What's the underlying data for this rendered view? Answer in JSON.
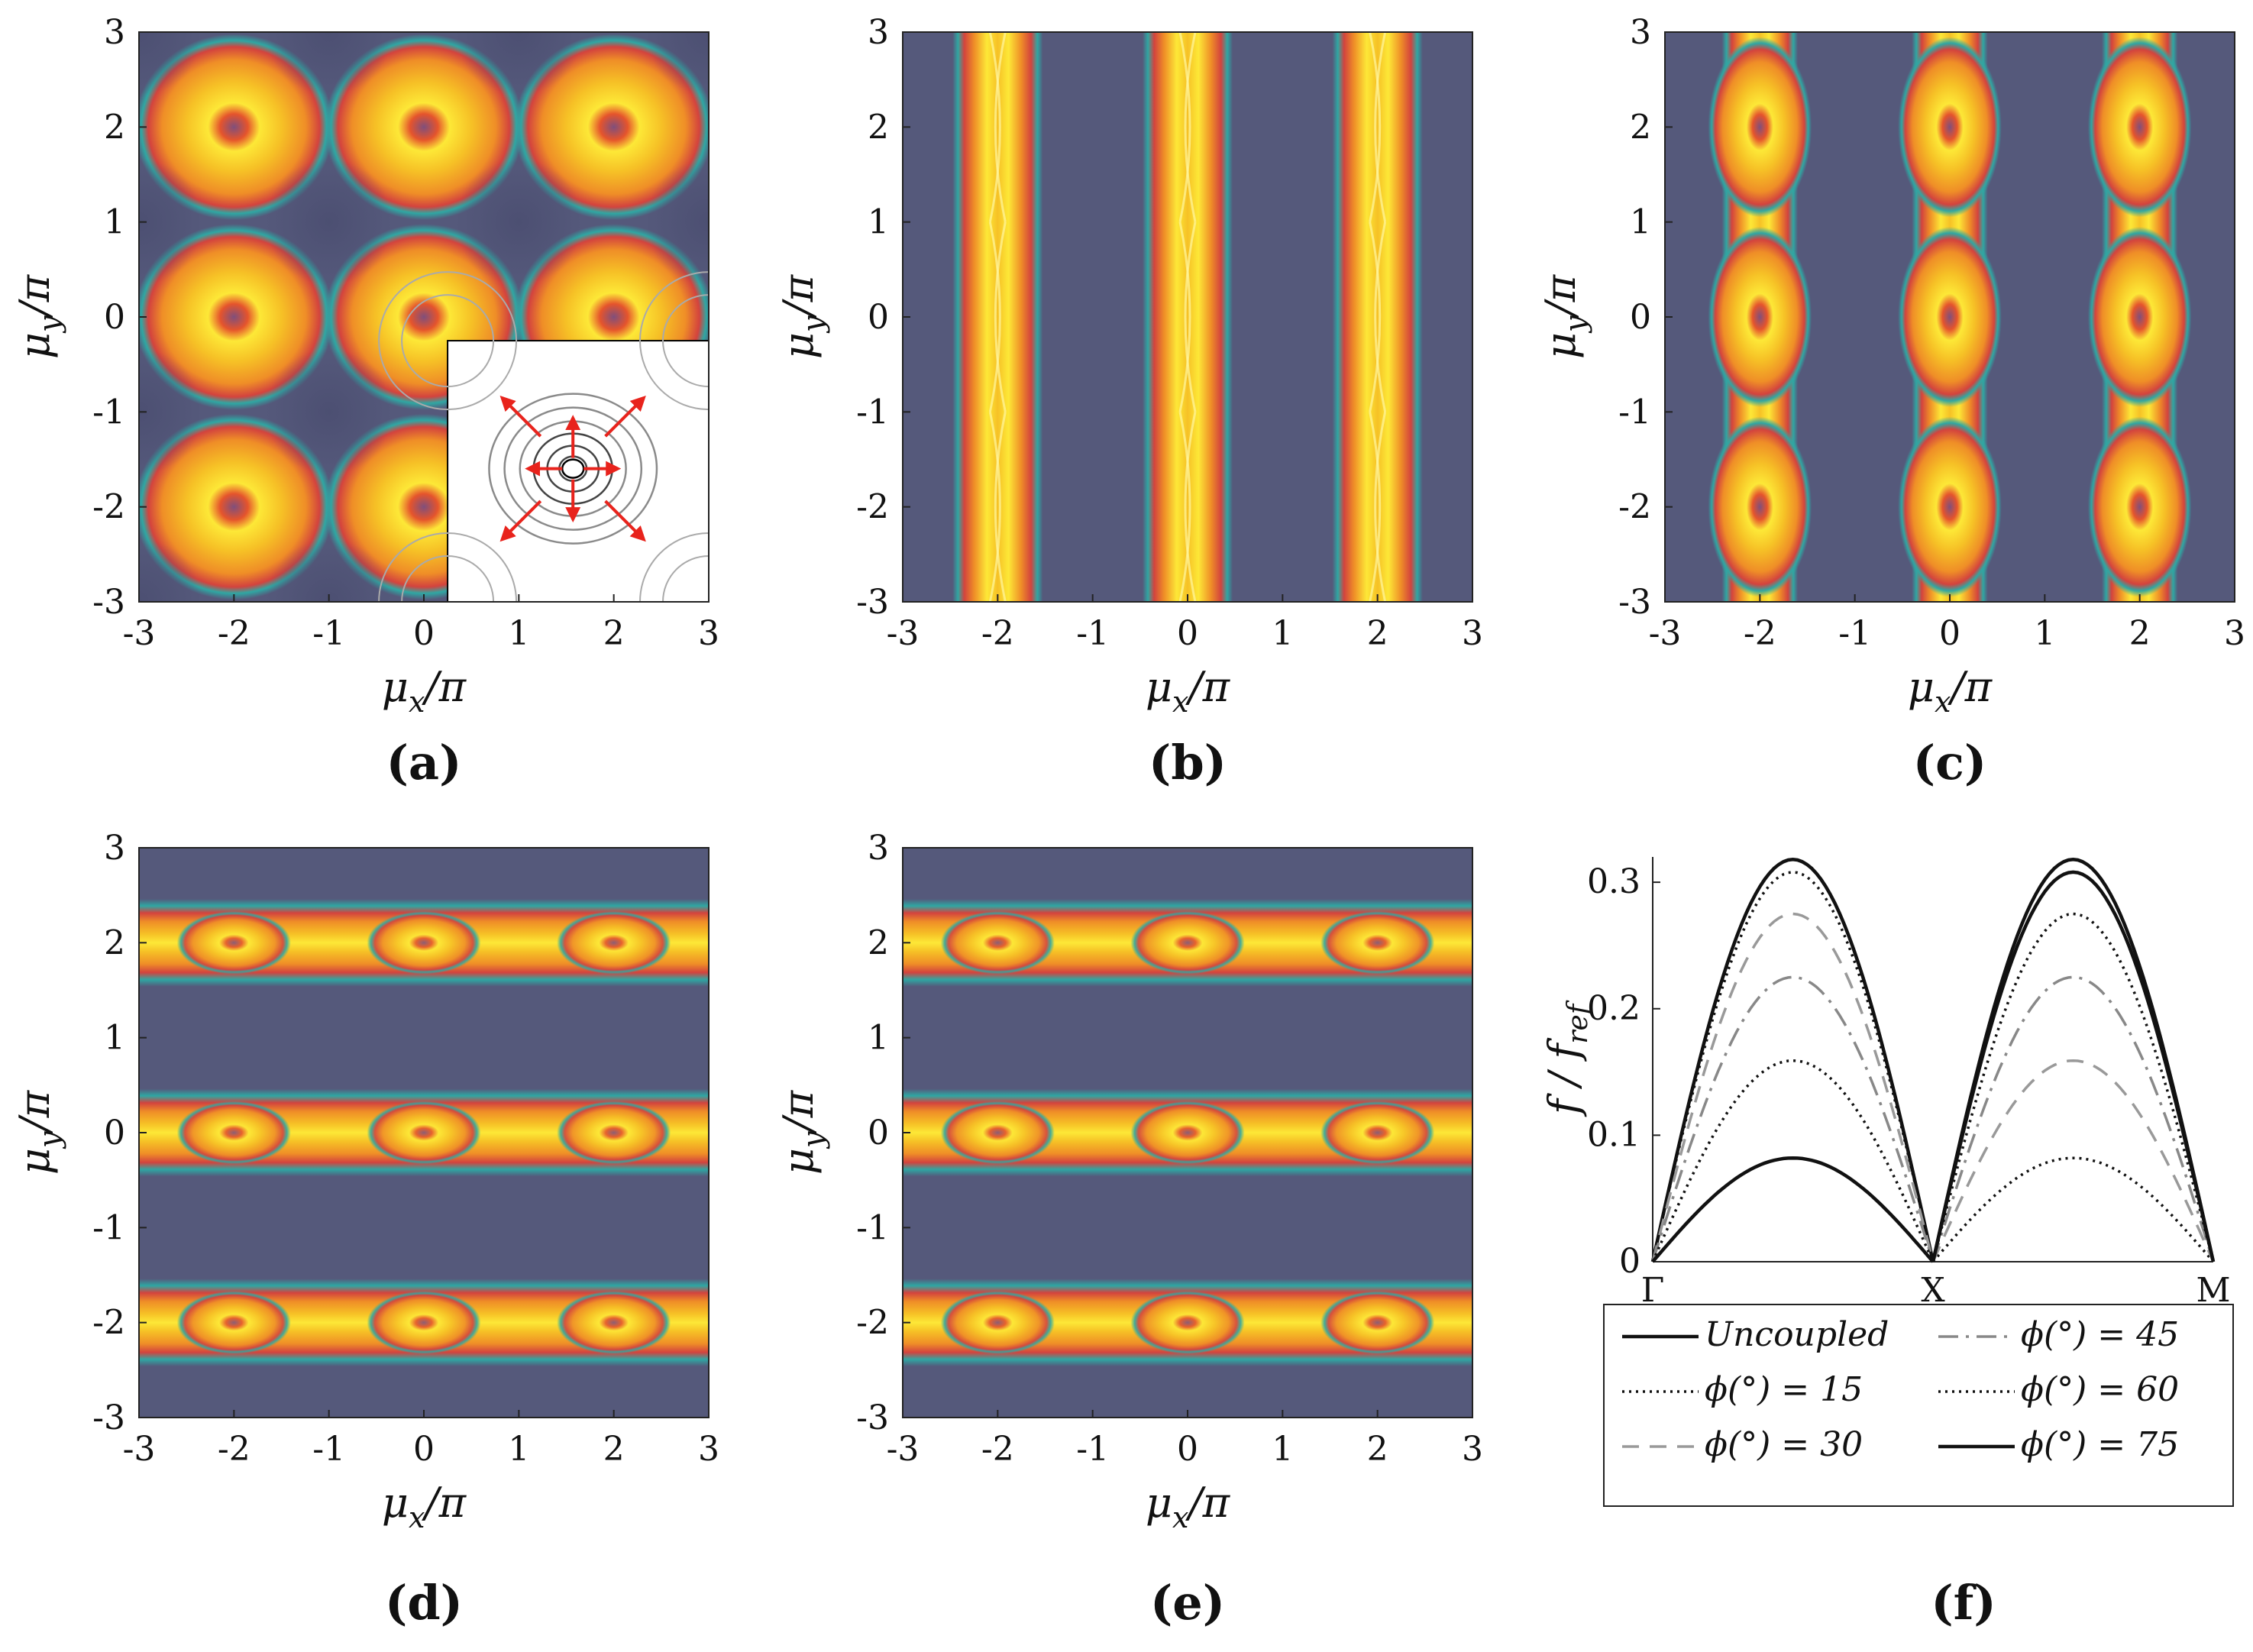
{
  "colors": {
    "background": "#55597b",
    "teal": "#2fa7a3",
    "red": "#d3433e",
    "orange": "#ef8e27",
    "gold": "#f6c126",
    "yellow": "#fde837",
    "center": "#7f4f7c",
    "inset_bg": "#ffffff",
    "inset_arrow": "#e8231c"
  },
  "chart_data": [
    {
      "type": "heatmap",
      "panel": "(a)",
      "pattern": "2D-lattice",
      "xlabel": "μx/π",
      "ylabel": "μy/π",
      "xlim": [
        -3,
        3
      ],
      "ylim": [
        -3,
        3
      ],
      "xticks": [
        "-3",
        "-2",
        "-1",
        "0",
        "1",
        "2",
        "3"
      ],
      "yticks": [
        "-3",
        "-2",
        "-1",
        "0",
        "1",
        "2",
        "3"
      ],
      "peak_centers": [
        -2,
        0,
        2
      ],
      "inset": {
        "description_icon": "contour-inset",
        "arrows": 8
      }
    },
    {
      "type": "heatmap",
      "panel": "(b)",
      "pattern": "vertical-bands",
      "xlabel": "μx/π",
      "ylabel": "μy/π",
      "xlim": [
        -3,
        3
      ],
      "ylim": [
        -3,
        3
      ],
      "xticks": [
        "-3",
        "-2",
        "-1",
        "0",
        "1",
        "2",
        "3"
      ],
      "yticks": [
        "-3",
        "-2",
        "-1",
        "0",
        "1",
        "2",
        "3"
      ],
      "band_centers": [
        -2,
        0,
        2
      ]
    },
    {
      "type": "heatmap",
      "panel": "(c)",
      "pattern": "vertical-beaded-bands",
      "xlabel": "μx/π",
      "ylabel": "μy/π",
      "xlim": [
        -3,
        3
      ],
      "ylim": [
        -3,
        3
      ],
      "xticks": [
        "-3",
        "-2",
        "-1",
        "0",
        "1",
        "2",
        "3"
      ],
      "yticks": [
        "-3",
        "-2",
        "-1",
        "0",
        "1",
        "2",
        "3"
      ],
      "band_centers": [
        -2,
        0,
        2
      ]
    },
    {
      "type": "heatmap",
      "panel": "(d)",
      "pattern": "horizontal-bands",
      "xlabel": "μx/π",
      "ylabel": "μy/π",
      "xlim": [
        -3,
        3
      ],
      "ylim": [
        -3,
        3
      ],
      "xticks": [
        "-3",
        "-2",
        "-1",
        "0",
        "1",
        "2",
        "3"
      ],
      "yticks": [
        "-3",
        "-2",
        "-1",
        "0",
        "1",
        "2",
        "3"
      ],
      "band_centers": [
        -2,
        0,
        2
      ]
    },
    {
      "type": "heatmap",
      "panel": "(e)",
      "pattern": "horizontal-bands",
      "xlabel": "μx/π",
      "ylabel": "μy/π",
      "xlim": [
        -3,
        3
      ],
      "ylim": [
        -3,
        3
      ],
      "xticks": [
        "-3",
        "-2",
        "-1",
        "0",
        "1",
        "2",
        "3"
      ],
      "yticks": [
        "-3",
        "-2",
        "-1",
        "0",
        "1",
        "2",
        "3"
      ],
      "band_centers": [
        -2,
        0,
        2
      ]
    },
    {
      "type": "line",
      "panel": "(f)",
      "ylabel": "f / f_ref",
      "x_labels": [
        "Γ",
        "X",
        "M"
      ],
      "ylim": [
        0,
        0.32
      ],
      "yticks": [
        "0",
        "0.1",
        "0.2",
        "0.3"
      ],
      "series": [
        {
          "name": "Uncoupled",
          "style": "solid-black",
          "peak_GX": 0.318,
          "peak_XM": 0.318
        },
        {
          "name": "ϕ(°) = 15",
          "style": "dotted-black",
          "peak_GX": 0.308,
          "peak_XM": 0.082
        },
        {
          "name": "ϕ(°) = 30",
          "style": "dashed-gray",
          "peak_GX": 0.275,
          "peak_XM": 0.159
        },
        {
          "name": "ϕ(°) = 45",
          "style": "dashdot-gray",
          "peak_GX": 0.225,
          "peak_XM": 0.225
        },
        {
          "name": "ϕ(°) = 60",
          "style": "dotted-black",
          "peak_GX": 0.159,
          "peak_XM": 0.275
        },
        {
          "name": "ϕ(°) = 75",
          "style": "solid-black",
          "peak_GX": 0.082,
          "peak_XM": 0.308
        }
      ]
    }
  ],
  "panels": {
    "a": "(a)",
    "b": "(b)",
    "c": "(c)",
    "d": "(d)",
    "e": "(e)",
    "f": "(f)"
  },
  "axis_text": {
    "mu_x": "μ",
    "mu_x_sub": "x",
    "mu_y": "μ",
    "mu_y_sub": "y",
    "over_pi": "/π"
  },
  "legend": {
    "items": [
      "Uncoupled",
      "ϕ(°) = 15",
      "ϕ(°) = 30",
      "ϕ(°) = 45",
      "ϕ(°) = 60",
      "ϕ(°) = 75"
    ]
  },
  "f_axis": {
    "ylabel": "f / f",
    "ylabel_sub": "ref"
  }
}
